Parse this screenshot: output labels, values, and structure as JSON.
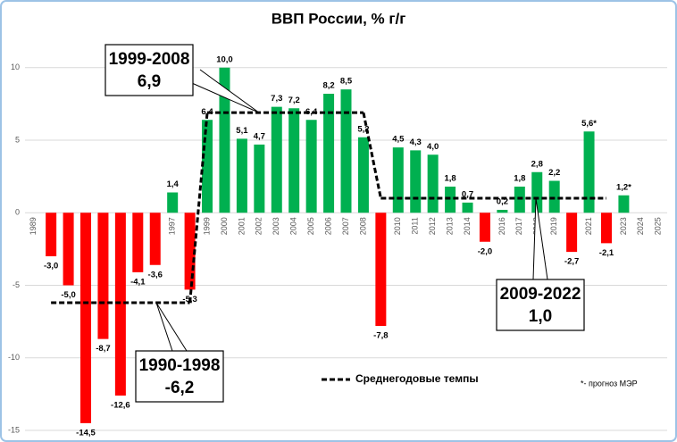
{
  "chart_data": {
    "type": "bar",
    "title": "ВВП России, % г/г",
    "categories": [
      "1989",
      "1990",
      "1991",
      "1992",
      "1993",
      "1994",
      "1995",
      "1996",
      "1997",
      "1998",
      "1999",
      "2000",
      "2001",
      "2002",
      "2003",
      "2004",
      "2005",
      "2006",
      "2007",
      "2008",
      "2009",
      "2010",
      "2011",
      "2012",
      "2013",
      "2014",
      "2015",
      "2016",
      "2017",
      "2018",
      "2019",
      "2020",
      "2021",
      "2022",
      "2023",
      "2024",
      "2025"
    ],
    "values": [
      null,
      -3.0,
      -5.0,
      -14.5,
      -8.7,
      -12.6,
      -4.1,
      -3.6,
      1.4,
      -5.3,
      6.4,
      10.0,
      5.1,
      4.7,
      7.3,
      7.2,
      6.4,
      8.2,
      8.5,
      5.2,
      -7.8,
      4.5,
      4.3,
      4.0,
      1.8,
      0.7,
      -2.0,
      0.2,
      1.8,
      2.8,
      2.2,
      -2.7,
      5.6,
      -2.1,
      1.2,
      null,
      null
    ],
    "value_labels": [
      null,
      "-3,0",
      "-5,0",
      "-14,5",
      "-8,7",
      "-12,6",
      "-4,1",
      "-3,6",
      "1,4",
      "-5,3",
      "6,4",
      "10,0",
      "5,1",
      "4,7",
      "7,3",
      "7,2",
      "6,4",
      "8,2",
      "8,5",
      "5,2",
      "-7,8",
      "4,5",
      "4,3",
      "4,0",
      "1,8",
      "0,7",
      "-2,0",
      "0,2",
      "1,8",
      "2,8",
      "2,2",
      "-2,7",
      "5,6*",
      "-2,1",
      "1,2*",
      null,
      null
    ],
    "positive_color": "#00b050",
    "negative_color": "#ff0000",
    "ylim": [
      -15,
      12
    ],
    "yticks": [
      -15,
      -10,
      -5,
      0,
      5,
      10
    ],
    "grid": true,
    "averages": [
      {
        "period": "1990-1998",
        "value": -6.2,
        "value_label": "-6,2"
      },
      {
        "period": "1999-2008",
        "value": 6.9,
        "value_label": "6,9"
      },
      {
        "period": "2009-2022",
        "value": 1.0,
        "value_label": "1,0"
      }
    ],
    "legend_label": "Среднегодовые темпы",
    "note": "*- прогноз МЭР"
  }
}
